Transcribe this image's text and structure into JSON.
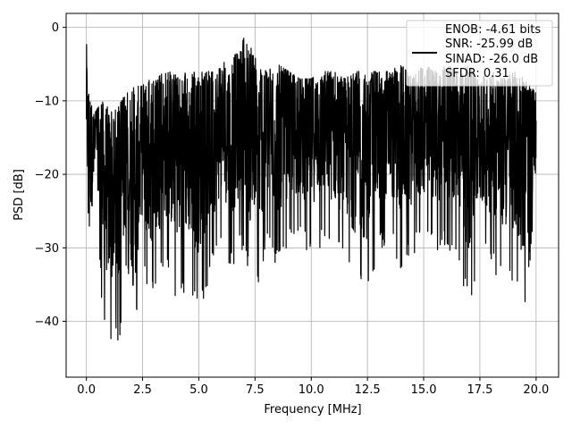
{
  "chart_data": {
    "type": "line",
    "xlabel": "Frequency [MHz]",
    "ylabel": "PSD [dB]",
    "xlim": [
      -0.9,
      21.0
    ],
    "ylim": [
      -47.6,
      1.9
    ],
    "xticks": [
      0.0,
      2.5,
      5.0,
      7.5,
      10.0,
      12.5,
      15.0,
      17.5,
      20.0
    ],
    "xtick_labels": [
      "0.0",
      "2.5",
      "5.0",
      "7.5",
      "10.0",
      "12.5",
      "15.0",
      "17.5",
      "20.0"
    ],
    "yticks": [
      0,
      -10,
      -20,
      -30,
      -40
    ],
    "ytick_labels": [
      "0",
      "−10",
      "−20",
      "−30",
      "−40"
    ],
    "grid": true,
    "legend_position": "upper-right",
    "series_color": "#000000",
    "series": [
      {
        "label_lines": [
          "ENOB: -4.61 bits",
          "SNR: -25.99 dB",
          "SINAD: -26.0 dB",
          "SFDR: 0.31"
        ],
        "x_range": [
          0.0,
          20.0
        ],
        "envelope_x": [
          0.0,
          0.05,
          0.1,
          0.2,
          0.3,
          0.5,
          0.75,
          1.0,
          1.3,
          1.5,
          1.8,
          2.1,
          2.5,
          2.7,
          3.0,
          3.5,
          4.0,
          4.5,
          5.0,
          5.5,
          6.0,
          6.5,
          6.9,
          7.0,
          7.5,
          8.0,
          8.5,
          9.0,
          9.5,
          10.0,
          10.5,
          11.0,
          11.5,
          12.0,
          12.5,
          13.0,
          13.5,
          14.0,
          14.5,
          15.0,
          15.5,
          16.0,
          16.5,
          17.0,
          17.5,
          18.0,
          18.5,
          19.0,
          19.5,
          20.0
        ],
        "envelope_max": [
          -1,
          -9,
          -9,
          -10,
          -12,
          -11,
          -10,
          -11,
          -11,
          -10,
          -9,
          -8,
          -8,
          -7,
          -7,
          -6,
          -6,
          -6,
          -6,
          -6,
          -5,
          -4,
          -3,
          0,
          -4,
          -6,
          -5,
          -6,
          -7,
          -7,
          -6,
          -6,
          -7,
          -6,
          -6,
          -6,
          -6,
          -5,
          -7,
          -5,
          -6,
          -5,
          -6,
          -5,
          -7,
          -6,
          -7,
          -6,
          -7,
          -9
        ],
        "envelope_min": [
          -25,
          -28,
          -26,
          -32,
          -30,
          -28,
          -41,
          -42,
          -44,
          -42,
          -33,
          -45,
          -32,
          -37,
          -37,
          -33,
          -37,
          -36,
          -39,
          -34,
          -30,
          -33,
          -30,
          -31,
          -38,
          -30,
          -33,
          -30,
          -30,
          -31,
          -30,
          -31,
          -33,
          -36,
          -37,
          -31,
          -30,
          -33,
          -31,
          -30,
          -31,
          -30,
          -31,
          -39,
          -31,
          -33,
          -35,
          -35,
          -40,
          -25
        ]
      }
    ]
  }
}
